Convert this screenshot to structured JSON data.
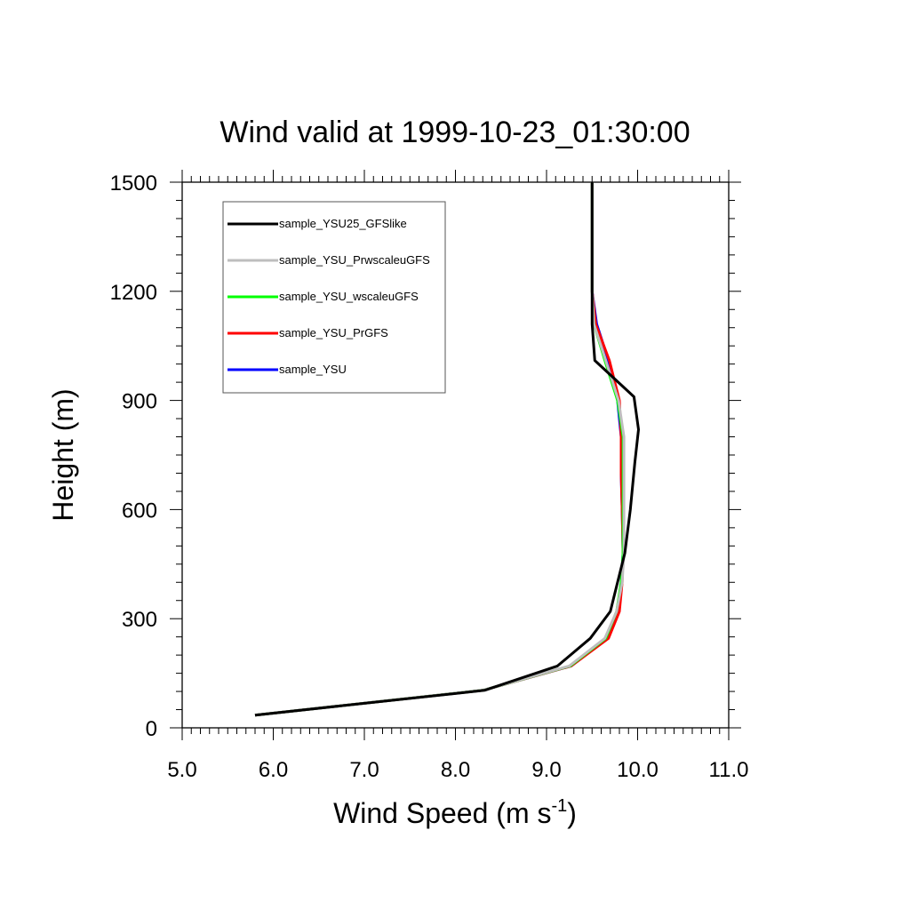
{
  "chart_data": {
    "type": "line",
    "title": "Wind valid at 1999-10-23_01:30:00",
    "xlabel": "Wind Speed (m s",
    "xlabel_sup": "-1",
    "xlabel_tail": ")",
    "ylabel": "Height (m)",
    "xlim": [
      5.0,
      11.0
    ],
    "ylim": [
      0,
      1500
    ],
    "x_ticks": [
      5.0,
      6.0,
      7.0,
      8.0,
      9.0,
      10.0,
      11.0
    ],
    "x_tick_labels": [
      "5.0",
      "6.0",
      "7.0",
      "8.0",
      "9.0",
      "10.0",
      "11.0"
    ],
    "y_ticks": [
      0,
      300,
      600,
      900,
      1200,
      1500
    ],
    "y_tick_labels": [
      "0",
      "300",
      "600",
      "900",
      "1200",
      "1500"
    ],
    "grid": false,
    "legend_position": "top-left",
    "series": [
      {
        "name": "sample_YSU",
        "color": "#0000ff",
        "points": [
          [
            5.8,
            35
          ],
          [
            8.3,
            103
          ],
          [
            9.27,
            170
          ],
          [
            9.67,
            246
          ],
          [
            9.78,
            320
          ],
          [
            9.82,
            400
          ],
          [
            9.84,
            480
          ],
          [
            9.83,
            600
          ],
          [
            9.82,
            700
          ],
          [
            9.82,
            800
          ],
          [
            9.78,
            900
          ],
          [
            9.68,
            1010
          ],
          [
            9.55,
            1110
          ],
          [
            9.5,
            1200
          ],
          [
            9.5,
            1350
          ],
          [
            9.5,
            1500
          ]
        ]
      },
      {
        "name": "sample_YSU_PrGFS",
        "color": "#ff0000",
        "points": [
          [
            5.8,
            35
          ],
          [
            8.3,
            103
          ],
          [
            9.27,
            170
          ],
          [
            9.68,
            246
          ],
          [
            9.8,
            320
          ],
          [
            9.83,
            400
          ],
          [
            9.84,
            480
          ],
          [
            9.83,
            600
          ],
          [
            9.82,
            700
          ],
          [
            9.82,
            800
          ],
          [
            9.8,
            900
          ],
          [
            9.69,
            1010
          ],
          [
            9.54,
            1110
          ],
          [
            9.5,
            1200
          ],
          [
            9.5,
            1350
          ],
          [
            9.5,
            1500
          ]
        ]
      },
      {
        "name": "sample_YSU_wscaleuGFS",
        "color": "#00ff00",
        "points": [
          [
            5.8,
            35
          ],
          [
            8.3,
            103
          ],
          [
            9.26,
            170
          ],
          [
            9.65,
            246
          ],
          [
            9.77,
            320
          ],
          [
            9.82,
            400
          ],
          [
            9.84,
            480
          ],
          [
            9.84,
            600
          ],
          [
            9.84,
            700
          ],
          [
            9.84,
            800
          ],
          [
            9.78,
            900
          ],
          [
            9.64,
            1010
          ],
          [
            9.52,
            1110
          ],
          [
            9.5,
            1200
          ],
          [
            9.5,
            1350
          ],
          [
            9.5,
            1500
          ]
        ]
      },
      {
        "name": "sample_YSU_PrwscaleuGFS",
        "color": "#bebebe",
        "points": [
          [
            5.8,
            35
          ],
          [
            8.3,
            103
          ],
          [
            9.25,
            170
          ],
          [
            9.64,
            246
          ],
          [
            9.77,
            320
          ],
          [
            9.83,
            400
          ],
          [
            9.85,
            480
          ],
          [
            9.85,
            600
          ],
          [
            9.85,
            700
          ],
          [
            9.85,
            800
          ],
          [
            9.79,
            900
          ],
          [
            9.65,
            1010
          ],
          [
            9.52,
            1110
          ],
          [
            9.5,
            1200
          ],
          [
            9.5,
            1350
          ],
          [
            9.5,
            1500
          ]
        ]
      },
      {
        "name": "sample_YSU25_GFSlike",
        "color": "#000000",
        "points": [
          [
            5.8,
            35
          ],
          [
            8.32,
            103
          ],
          [
            9.12,
            170
          ],
          [
            9.48,
            246
          ],
          [
            9.7,
            320
          ],
          [
            9.78,
            400
          ],
          [
            9.86,
            480
          ],
          [
            9.92,
            600
          ],
          [
            9.97,
            730
          ],
          [
            10.01,
            820
          ],
          [
            9.96,
            910
          ],
          [
            9.53,
            1010
          ],
          [
            9.5,
            1110
          ],
          [
            9.5,
            1200
          ],
          [
            9.5,
            1350
          ],
          [
            9.5,
            1500
          ]
        ]
      }
    ],
    "legend_order": [
      "sample_YSU25_GFSlike",
      "sample_YSU_PrwscaleuGFS",
      "sample_YSU_wscaleuGFS",
      "sample_YSU_PrGFS",
      "sample_YSU"
    ]
  }
}
